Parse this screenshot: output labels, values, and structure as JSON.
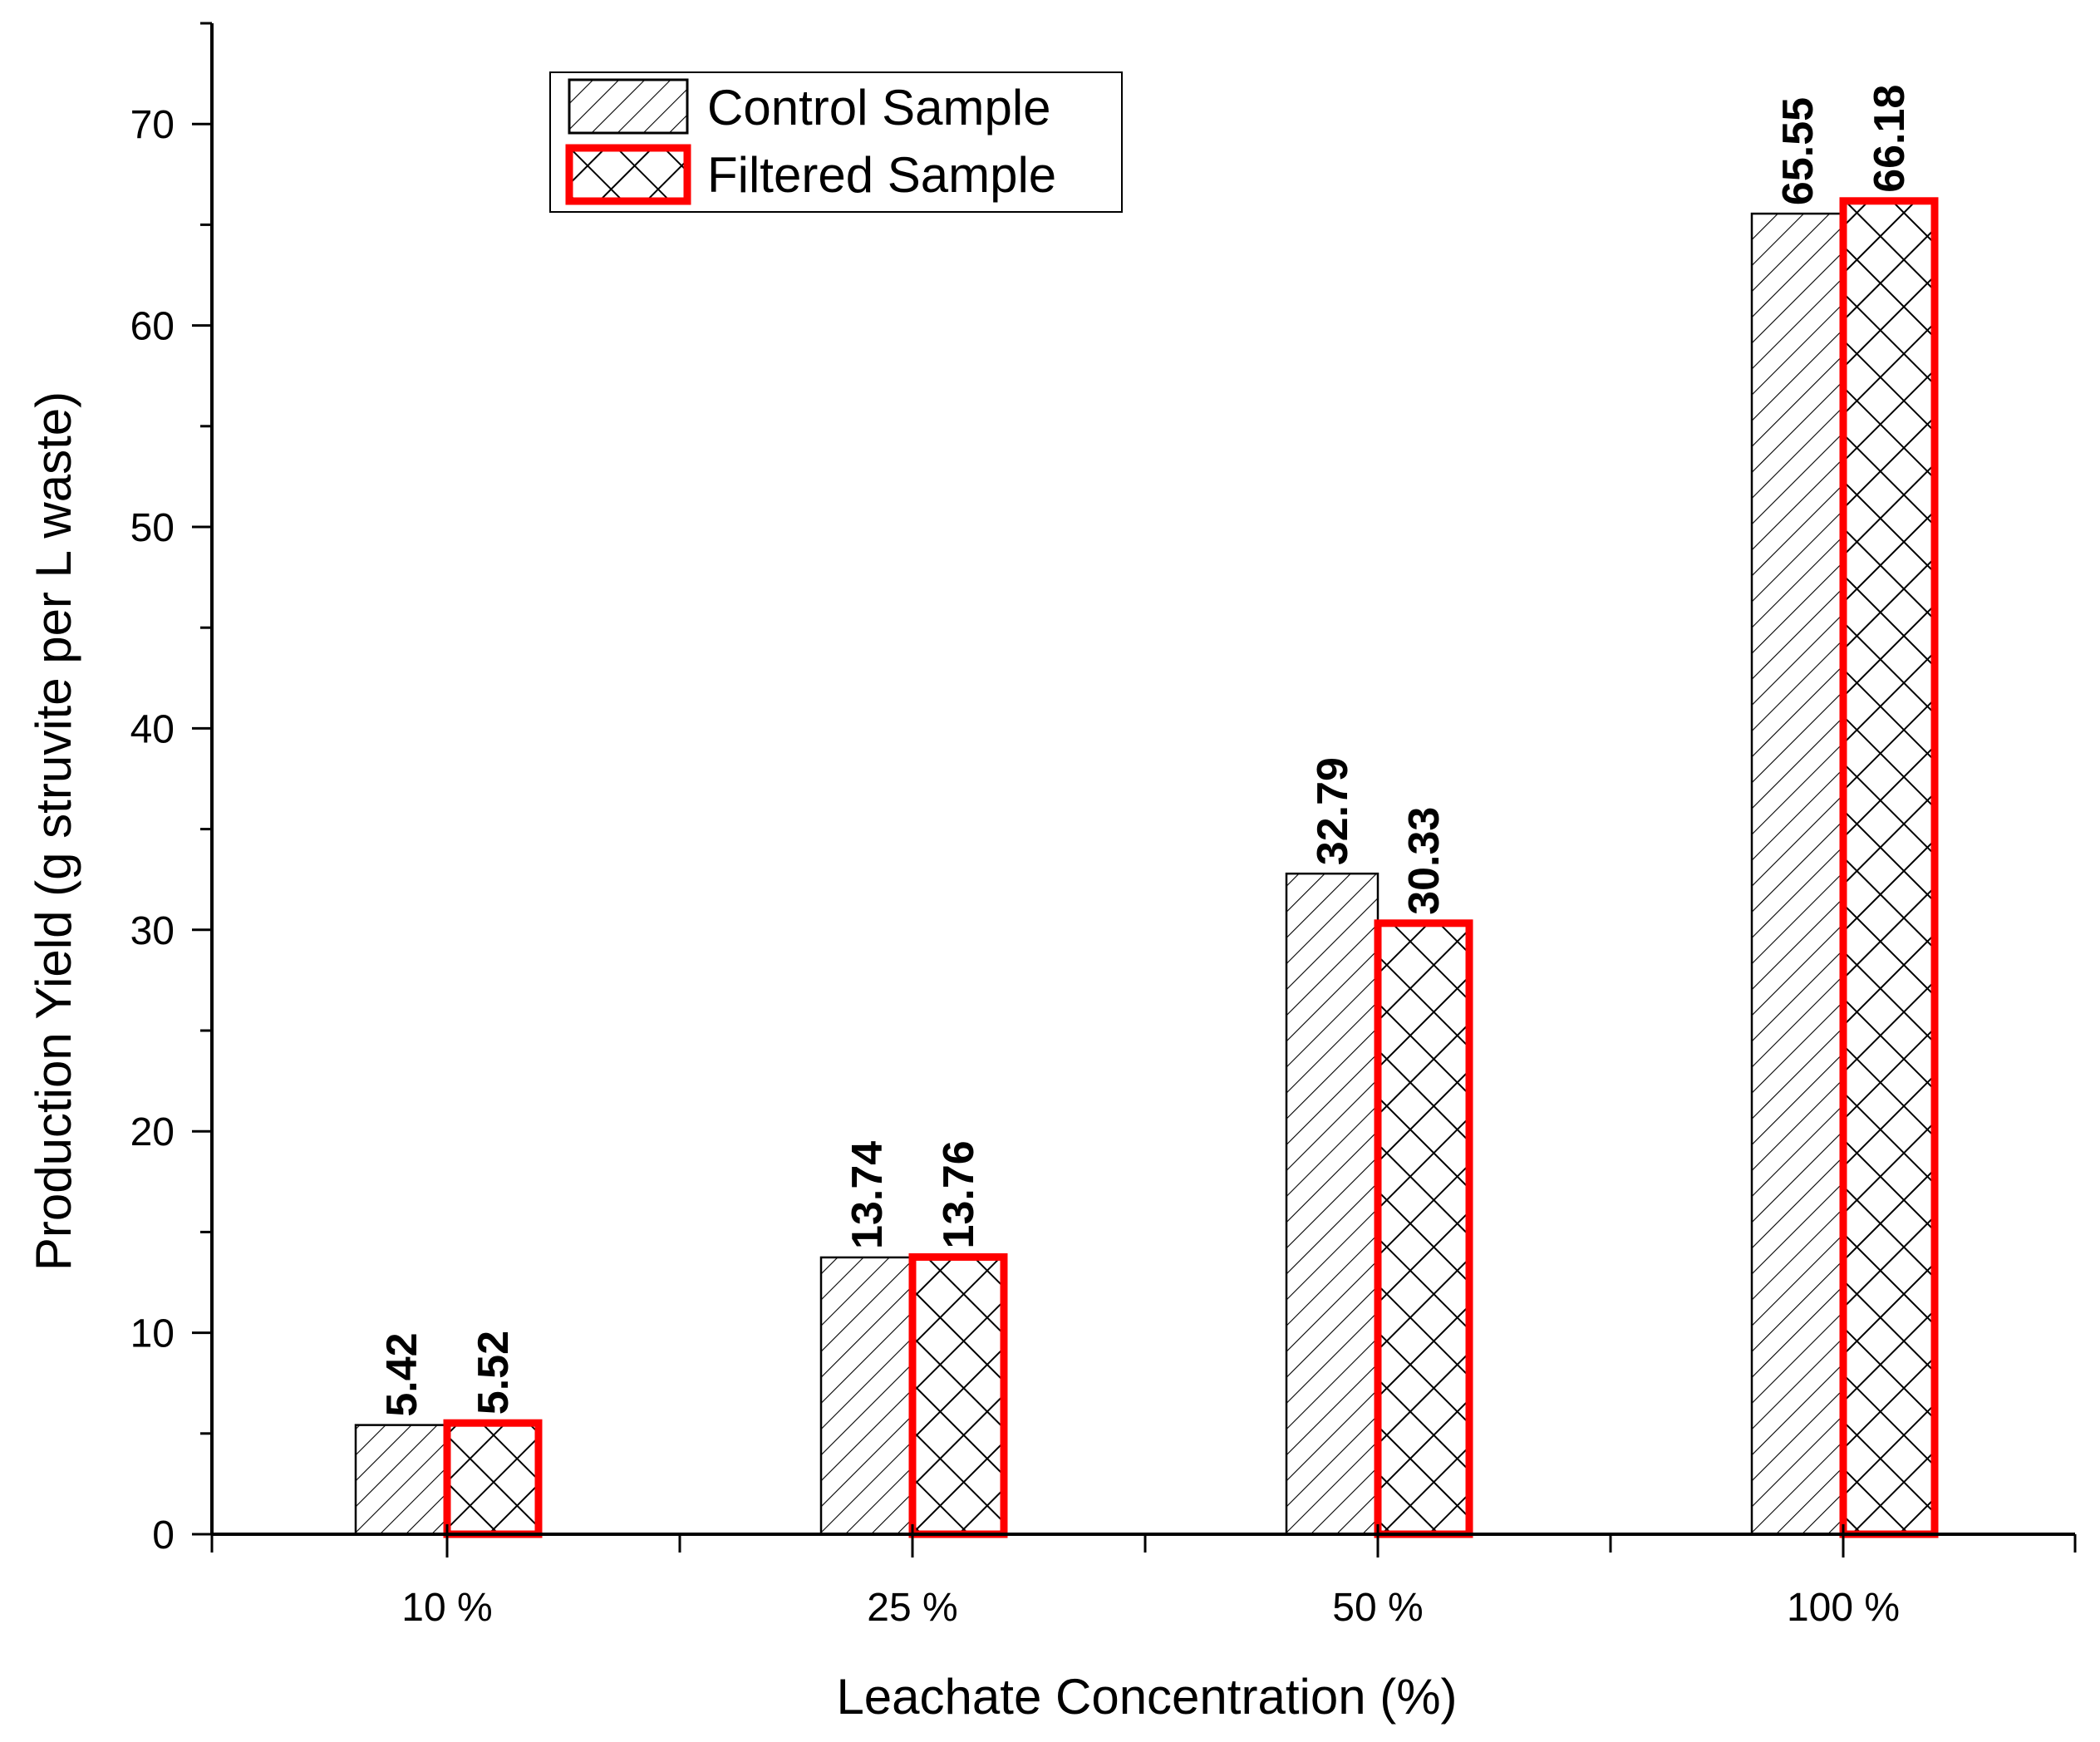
{
  "chart_data": {
    "type": "bar",
    "title": "",
    "xlabel": "Leachate Concentration (%)",
    "ylabel": "Production Yield (g struvite per L waste)",
    "categories": [
      "10 %",
      "25 %",
      "50 %",
      "100 %"
    ],
    "series": [
      {
        "name": "Control Sample",
        "values": [
          5.42,
          13.74,
          32.79,
          65.55
        ],
        "labels": [
          "5.42",
          "13.74",
          "32.79",
          "65.55"
        ],
        "pattern": "diagonal-hatch",
        "outline": "#000000"
      },
      {
        "name": "Filtered Sample",
        "values": [
          5.52,
          13.76,
          30.33,
          66.18
        ],
        "labels": [
          "5.52",
          "13.76",
          "30.33",
          "66.18"
        ],
        "pattern": "cross-hatch",
        "outline": "#ff0000"
      }
    ],
    "yticks": [
      0,
      10,
      20,
      30,
      40,
      50,
      60,
      70
    ],
    "ylim": [
      0,
      75
    ],
    "grid": false,
    "legend_position": "top-left"
  }
}
